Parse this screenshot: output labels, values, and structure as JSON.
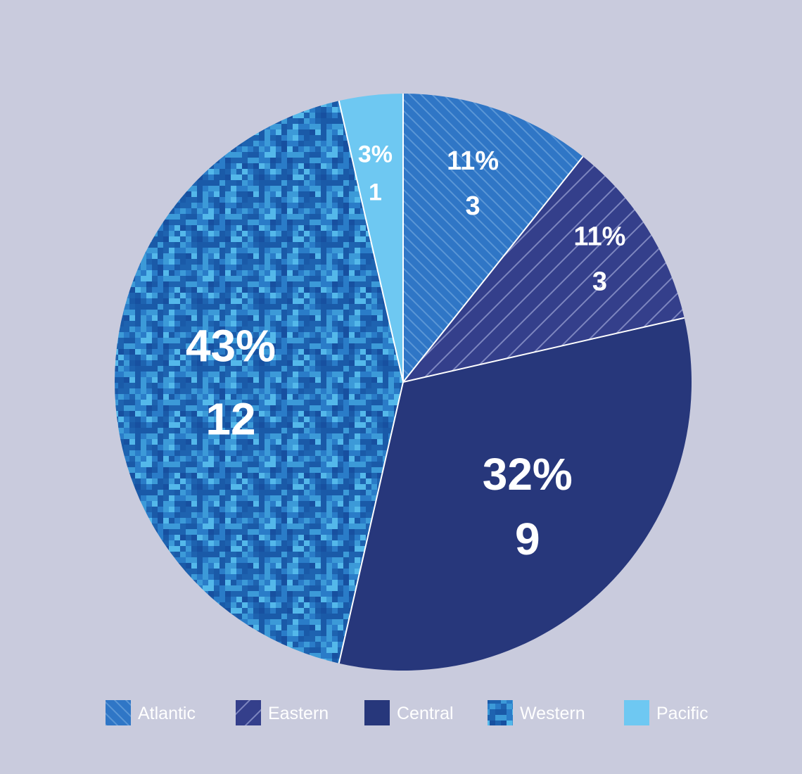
{
  "chart_data": {
    "type": "pie",
    "title": "",
    "start_angle": "12 o'clock",
    "direction": "clockwise",
    "slices": [
      {
        "name": "Atlantic",
        "value": 3,
        "percent_label": "11%",
        "count_label": "3",
        "color": "#2f76c6",
        "pattern": "hatch-back"
      },
      {
        "name": "Eastern",
        "value": 3,
        "percent_label": "11%",
        "count_label": "3",
        "color": "#343f8b",
        "pattern": "hatch-forward"
      },
      {
        "name": "Central",
        "value": 9,
        "percent_label": "32%",
        "count_label": "9",
        "color": "#27377b",
        "pattern": "solid"
      },
      {
        "name": "Western",
        "value": 12,
        "percent_label": "43%",
        "count_label": "12",
        "color": "#1e63b0",
        "pattern": "digital-camo"
      },
      {
        "name": "Pacific",
        "value": 1,
        "percent_label": "3%",
        "count_label": "1",
        "color": "#6ec8f2",
        "pattern": "solid"
      }
    ],
    "legend": {
      "placement": "bottom",
      "entries": [
        "Atlantic",
        "Eastern",
        "Central",
        "Western",
        "Pacific"
      ]
    },
    "colors": {
      "background": "#c9cbdd",
      "divider": "#ffffff",
      "label_text": "#ffffff",
      "camo_palette": [
        "#1a5aa8",
        "#2a7cc8",
        "#3c9ad8",
        "#54b8ea",
        "#1750a0"
      ]
    }
  }
}
